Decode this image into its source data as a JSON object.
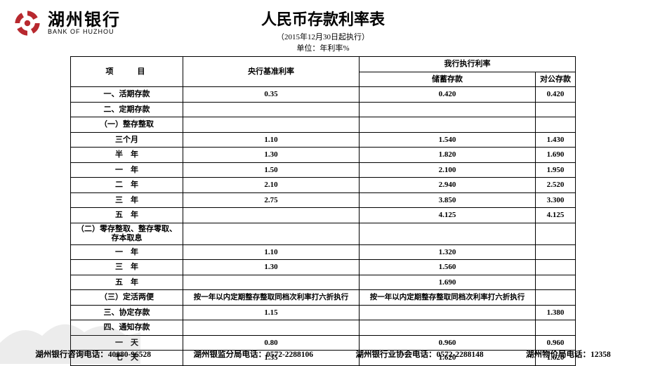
{
  "logo": {
    "chinese": "湖州银行",
    "english": "BANK OF HUZHOU",
    "color": "#b8292f"
  },
  "header": {
    "title": "人民币存款利率表",
    "subtitle": "（2015年12月30日起执行）",
    "unit": "单位：年利率%"
  },
  "table": {
    "columns": {
      "item": "项　　目",
      "base_rate": "央行基准利率",
      "our_rate": "我行执行利率",
      "savings": "储蓄存款",
      "corporate": "对公存款"
    },
    "rows": [
      {
        "label": "一、活期存款",
        "base": "0.35",
        "savings": "0.420",
        "corp": "0.420",
        "align": "center"
      },
      {
        "label": "二、定期存款",
        "base": "",
        "savings": "",
        "corp": "",
        "align": "center"
      },
      {
        "label": "（一）整存整取",
        "base": "",
        "savings": "",
        "corp": "",
        "align": "center"
      },
      {
        "label": "三个月",
        "base": "1.10",
        "savings": "1.540",
        "corp": "1.430",
        "align": "center"
      },
      {
        "label": "半　年",
        "base": "1.30",
        "savings": "1.820",
        "corp": "1.690",
        "align": "center",
        "cls": "sp2"
      },
      {
        "label": "一　年",
        "base": "1.50",
        "savings": "2.100",
        "corp": "1.950",
        "align": "center",
        "cls": "sp2"
      },
      {
        "label": "二　年",
        "base": "2.10",
        "savings": "2.940",
        "corp": "2.520",
        "align": "center",
        "cls": "sp2"
      },
      {
        "label": "三　年",
        "base": "2.75",
        "savings": "3.850",
        "corp": "3.300",
        "align": "center",
        "cls": "sp2"
      },
      {
        "label": "五　年",
        "base": "",
        "savings": "4.125",
        "corp": "4.125",
        "align": "center",
        "cls": "sp2"
      },
      {
        "label": "（二）零存整取、整存零取、存本取息",
        "base": "",
        "savings": "",
        "corp": "",
        "align": "center",
        "wrap": true
      },
      {
        "label": "一　年",
        "base": "1.10",
        "savings": "1.320",
        "corp": "",
        "align": "center",
        "cls": "sp2"
      },
      {
        "label": "三　年",
        "base": "1.30",
        "savings": "1.560",
        "corp": "",
        "align": "center",
        "cls": "sp2"
      },
      {
        "label": "五　年",
        "base": "",
        "savings": "1.690",
        "corp": "",
        "align": "center",
        "cls": "sp2"
      },
      {
        "label": "（三）定活两便",
        "base_note": "按一年以内定期整存整取同档次利率打六折执行",
        "savings_note": "按一年以内定期整存整取同档次利率打六折执行",
        "corp": "",
        "align": "center",
        "is_note": true
      },
      {
        "label": "三、协定存款",
        "base": "1.15",
        "savings": "",
        "corp": "1.380",
        "align": "center"
      },
      {
        "label": "四、通知存款",
        "base": "",
        "savings": "",
        "corp": "",
        "align": "center"
      },
      {
        "label": "一　天",
        "base": "0.80",
        "savings": "0.960",
        "corp": "0.960",
        "align": "center",
        "cls": "sp2"
      },
      {
        "label": "七　天",
        "base": "1.35",
        "savings": "1.620",
        "corp": "1.620",
        "align": "center",
        "cls": "sp2"
      }
    ]
  },
  "footer": {
    "contacts": [
      {
        "label": "湖州银行咨询电话：",
        "value": "40080-96528"
      },
      {
        "label": "湖州银监分局电话：",
        "value": "0572-2288106"
      },
      {
        "label": "湖州银行业协会电话：",
        "value": "0572-2288148"
      },
      {
        "label": "湖州物价局电话：",
        "value": "12358"
      }
    ]
  },
  "style": {
    "background": "#ffffff",
    "border_color": "#000000",
    "text_color": "#000000"
  }
}
